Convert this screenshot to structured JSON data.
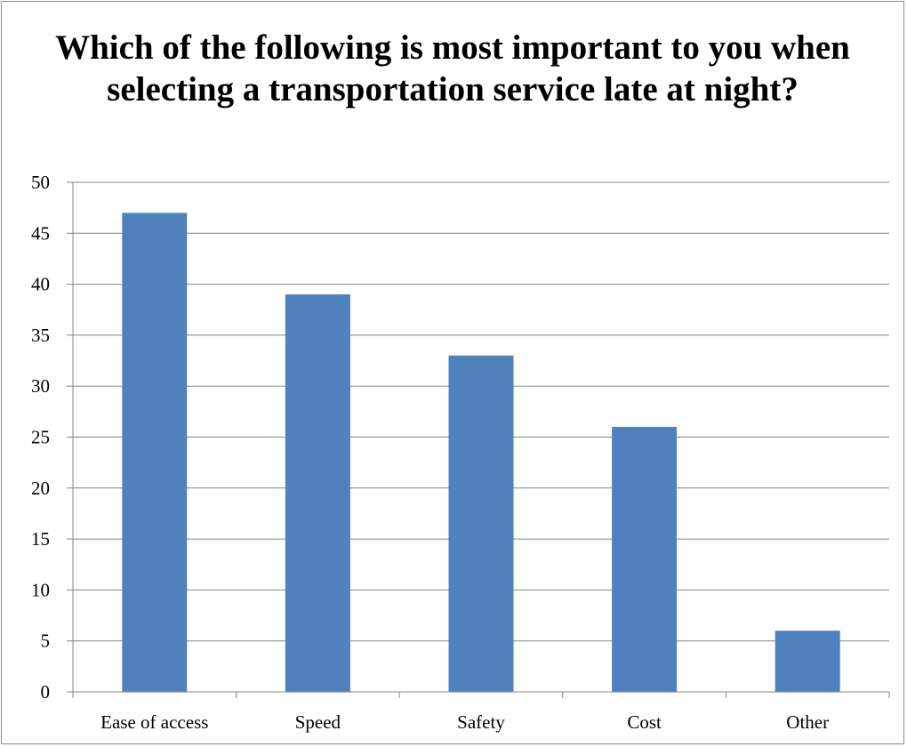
{
  "chart_data": {
    "type": "bar",
    "title": "Which of the following is most important to you when selecting a transportation service late at night?",
    "xlabel": "",
    "ylabel": "",
    "categories": [
      "Ease of access",
      "Speed",
      "Safety",
      "Cost",
      "Other"
    ],
    "values": [
      47,
      39,
      33,
      26,
      6
    ],
    "ylim": [
      0,
      50
    ],
    "yticks": [
      0,
      5,
      10,
      15,
      20,
      25,
      30,
      35,
      40,
      45,
      50
    ],
    "grid": true,
    "legend": "none",
    "bar_color": "#4f81bd",
    "grid_color": "#868686"
  }
}
